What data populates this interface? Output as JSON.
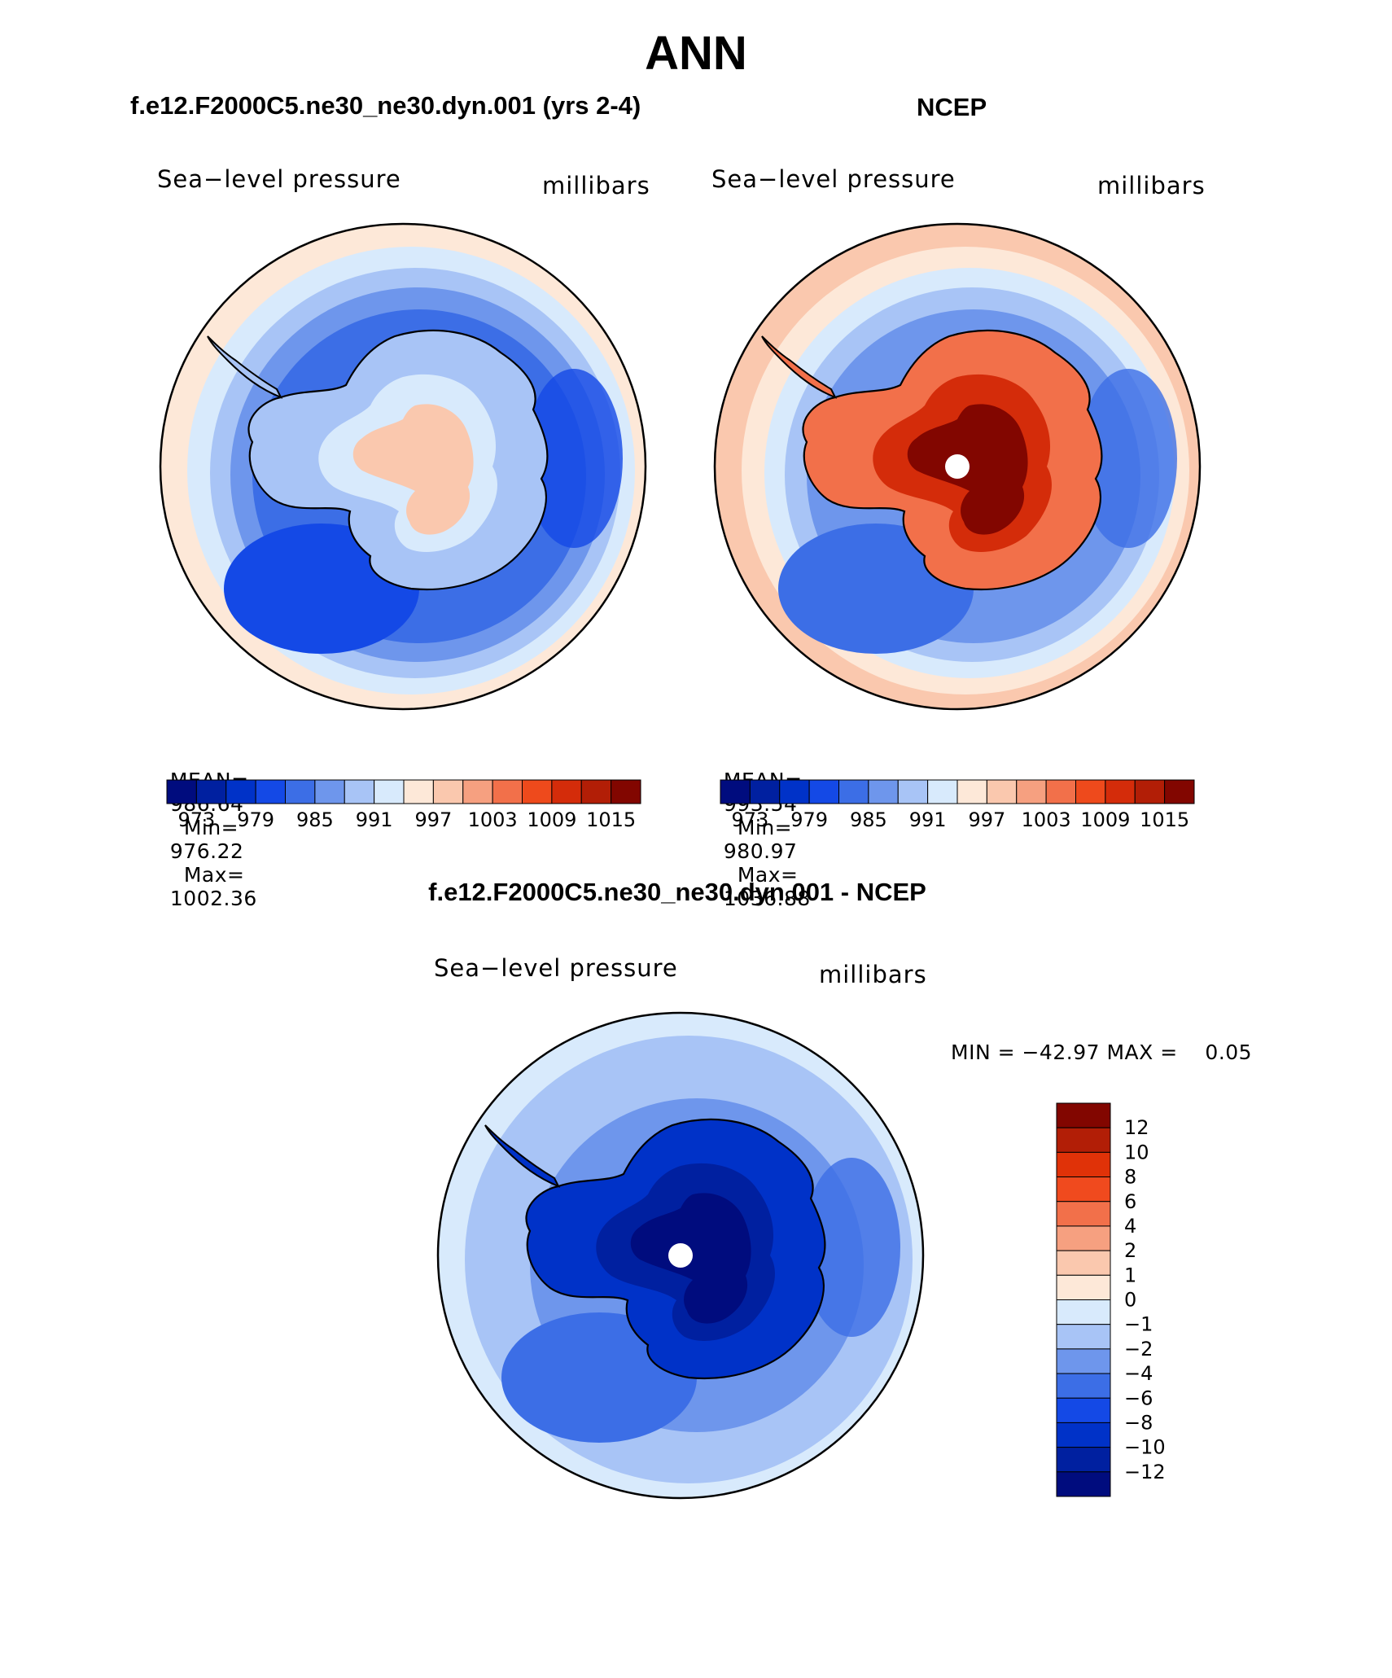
{
  "title": "ANN",
  "panels": [
    {
      "id": "model",
      "case_title": "f.e12.F2000C5.ne30_ne30.dyn.001 (yrs 2-4)",
      "variable": "Sea−level pressure",
      "units": "millibars",
      "stats": {
        "mean_label": "MEAN=",
        "mean": "986.64",
        "min_label": "Min=",
        "min": "976.22",
        "max_label": "Max=",
        "max": "1002.36"
      }
    },
    {
      "id": "obs",
      "case_title": "NCEP",
      "variable": "Sea−level pressure",
      "units": "millibars",
      "stats": {
        "mean_label": "MEAN=",
        "mean": "993.54",
        "min_label": "Min=",
        "min": "980.97",
        "max_label": "Max=",
        "max": "1036.88"
      }
    }
  ],
  "abs_colorbar": {
    "colors": [
      "#000c7e",
      "#0020a0",
      "#0032c8",
      "#1449e6",
      "#3c6ee6",
      "#6e96ec",
      "#a8c4f6",
      "#d8eafc",
      "#fde8d8",
      "#fac8ae",
      "#f6a080",
      "#f2704a",
      "#ee4a1c",
      "#d42c0a",
      "#b21e06",
      "#820600"
    ],
    "tick_labels": [
      "973",
      "979",
      "985",
      "991",
      "997",
      "1003",
      "1009",
      "1015"
    ]
  },
  "difference": {
    "case_title": "f.e12.F2000C5.ne30_ne30.dyn.001 - NCEP",
    "variable": "Sea−level pressure",
    "units": "millibars",
    "minmax": "MIN = −42.97 MAX =    0.05",
    "colorbar": {
      "colors_top_to_bottom": [
        "#820600",
        "#b21e06",
        "#e03208",
        "#f04a1e",
        "#f2704a",
        "#f6a080",
        "#fac8ae",
        "#fde8d8",
        "#d8eafc",
        "#a8c4f6",
        "#6e96ec",
        "#3c6ee6",
        "#1449e6",
        "#0032c8",
        "#0020a0",
        "#000c7e"
      ],
      "tick_labels_top_to_bottom": [
        "12",
        "10",
        "8",
        "6",
        "4",
        "2",
        "1",
        "0",
        "−1",
        "−2",
        "−4",
        "−6",
        "−8",
        "−10",
        "−12"
      ]
    }
  },
  "map_colors": {
    "model": {
      "ring0": "#fde8d8",
      "ring1": "#d8eafc",
      "ring2": "#a8c4f6",
      "ring3": "#6e96ec",
      "ocean": "#3c6ee6",
      "deep": "#1449e6",
      "land_edge": "#a8c4f6",
      "land_mid": "#d8eafc",
      "land_high": "#fac8ae"
    },
    "obs": {
      "ring0": "#fac8ae",
      "ring1": "#fde8d8",
      "ring2": "#d8eafc",
      "ring3": "#a8c4f6",
      "ocean": "#6e96ec",
      "deep": "#3c6ee6",
      "land_edge": "#f2704a",
      "land_mid": "#d42c0a",
      "land_high": "#820600"
    },
    "diff": {
      "ring0": "#d8eafc",
      "ring1": "#a8c4f6",
      "ocean": "#6e96ec",
      "deep": "#3c6ee6",
      "land_edge": "#0032c8",
      "land_mid": "#0020a0",
      "land_high": "#000c7e"
    },
    "coastline": "#000000",
    "pole_hole": "#ffffff"
  }
}
